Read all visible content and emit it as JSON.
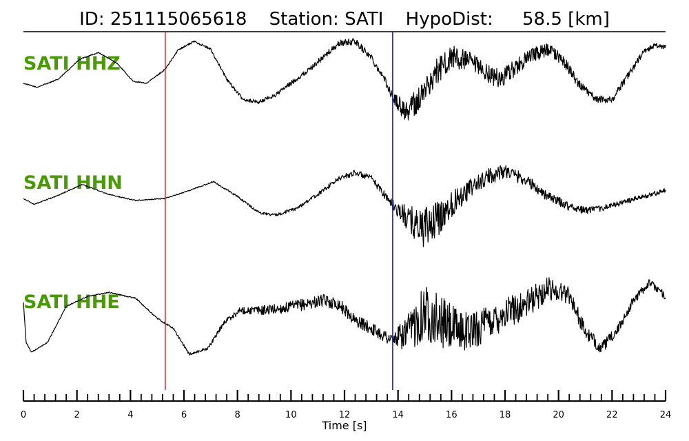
{
  "chart_data": {
    "type": "line",
    "title": {
      "id": "ID: 251115065618",
      "station": "Station: SATI",
      "hypodist_label": "HypoDist:",
      "hypodist_value": "58.5 [km]"
    },
    "xlabel": "Time [s]",
    "xlim": [
      0,
      24
    ],
    "x_ticks": [
      0,
      2,
      4,
      6,
      8,
      10,
      12,
      14,
      16,
      18,
      20,
      22,
      24
    ],
    "x_tick_labels": [
      "0",
      "2",
      "4",
      "6",
      "8",
      "10",
      "12",
      "14",
      "16",
      "18",
      "20",
      "22",
      "24"
    ],
    "minor_tick_step": 0.4,
    "markers": [
      {
        "time": 5.3,
        "color": "#ee1111"
      },
      {
        "time": 13.8,
        "color": "#1111cc"
      }
    ],
    "trace_color": "#000000",
    "label_color": "#4a9a08",
    "series": [
      {
        "name": "SATI HHZ",
        "time": [
          0,
          0.5,
          1.3,
          2.1,
          2.8,
          3.5,
          4.1,
          4.6,
          5.3,
          5.8,
          6.4,
          7.0,
          7.6,
          8.2,
          8.8,
          9.4,
          10.0,
          10.6,
          11.2,
          11.8,
          12.4,
          13.0,
          13.5,
          13.8,
          14.3,
          14.8,
          15.4,
          16.0,
          16.6,
          17.2,
          17.8,
          18.4,
          19.0,
          19.6,
          20.2,
          20.8,
          21.4,
          22.0,
          22.6,
          23.2,
          23.6,
          24.0
        ],
        "amplitude": [
          -0.05,
          -0.15,
          0.05,
          0.55,
          0.72,
          0.45,
          0.0,
          -0.05,
          0.3,
          0.8,
          1.0,
          0.8,
          0.05,
          -0.45,
          -0.52,
          -0.35,
          -0.05,
          0.25,
          0.6,
          0.95,
          1.0,
          0.6,
          0.05,
          -0.4,
          -0.75,
          -0.45,
          0.2,
          0.6,
          0.5,
          0.25,
          0.05,
          0.35,
          0.65,
          0.8,
          0.5,
          -0.1,
          -0.45,
          -0.45,
          0.15,
          0.75,
          0.9,
          0.85
        ],
        "noise": [
          0.02,
          0.02,
          0.02,
          0.02,
          0.02,
          0.02,
          0.02,
          0.02,
          0.03,
          0.04,
          0.05,
          0.05,
          0.06,
          0.07,
          0.08,
          0.09,
          0.1,
          0.1,
          0.12,
          0.13,
          0.14,
          0.15,
          0.15,
          0.2,
          0.5,
          0.55,
          0.55,
          0.5,
          0.45,
          0.4,
          0.4,
          0.35,
          0.3,
          0.3,
          0.25,
          0.2,
          0.15,
          0.15,
          0.15,
          0.12,
          0.1,
          0.1
        ]
      },
      {
        "name": "SATI HHN",
        "time": [
          0,
          0.4,
          1.2,
          2.2,
          3.2,
          4.2,
          5.3,
          6.2,
          7.1,
          8.0,
          8.8,
          9.4,
          10.2,
          11.0,
          11.8,
          12.4,
          13.0,
          13.8,
          14.4,
          15.0,
          15.6,
          16.2,
          16.8,
          17.4,
          18.0,
          18.8,
          19.6,
          20.4,
          21.0,
          21.6,
          22.4,
          23.2,
          24.0
        ],
        "amplitude": [
          0.0,
          -0.15,
          0.05,
          0.35,
          0.1,
          -0.05,
          -0.0,
          0.2,
          0.42,
          0.05,
          -0.35,
          -0.42,
          -0.25,
          0.1,
          0.5,
          0.65,
          0.5,
          -0.15,
          -0.55,
          -0.75,
          -0.45,
          0.0,
          0.3,
          0.55,
          0.7,
          0.45,
          0.05,
          -0.2,
          -0.3,
          -0.25,
          -0.1,
          0.05,
          0.2
        ],
        "noise": [
          0.02,
          0.02,
          0.02,
          0.02,
          0.02,
          0.02,
          0.02,
          0.02,
          0.03,
          0.04,
          0.05,
          0.06,
          0.07,
          0.08,
          0.1,
          0.12,
          0.14,
          0.2,
          0.6,
          0.85,
          0.7,
          0.5,
          0.4,
          0.35,
          0.3,
          0.25,
          0.2,
          0.18,
          0.15,
          0.12,
          0.12,
          0.1,
          0.1
        ]
      },
      {
        "name": "SATI HHE",
        "time": [
          0,
          0.1,
          0.3,
          0.9,
          1.6,
          2.4,
          3.2,
          4.2,
          5.0,
          5.6,
          6.2,
          6.9,
          7.5,
          8.1,
          8.9,
          9.7,
          10.5,
          11.2,
          11.8,
          12.4,
          13.0,
          13.8,
          14.4,
          15.0,
          15.6,
          16.2,
          16.8,
          17.4,
          18.0,
          18.8,
          19.6,
          20.4,
          21.0,
          21.6,
          22.2,
          22.8,
          23.4,
          24.0
        ],
        "amplitude": [
          0.4,
          -0.6,
          -0.85,
          -0.6,
          0.3,
          0.55,
          0.65,
          0.5,
          0.0,
          -0.25,
          -0.9,
          -0.75,
          -0.1,
          0.2,
          0.2,
          0.25,
          0.35,
          0.45,
          0.35,
          -0.05,
          -0.25,
          -0.55,
          -0.35,
          0.2,
          -0.1,
          -0.3,
          -0.3,
          -0.1,
          0.15,
          0.35,
          0.75,
          0.6,
          -0.35,
          -0.75,
          -0.3,
          0.45,
          0.9,
          0.55
        ],
        "noise": [
          0.02,
          0.02,
          0.02,
          0.02,
          0.02,
          0.02,
          0.02,
          0.03,
          0.03,
          0.04,
          0.05,
          0.07,
          0.1,
          0.15,
          0.2,
          0.22,
          0.25,
          0.25,
          0.25,
          0.25,
          0.25,
          0.3,
          0.8,
          1.2,
          1.1,
          0.9,
          0.8,
          0.75,
          0.7,
          0.6,
          0.5,
          0.4,
          0.3,
          0.25,
          0.2,
          0.2,
          0.15,
          0.15
        ]
      }
    ]
  }
}
